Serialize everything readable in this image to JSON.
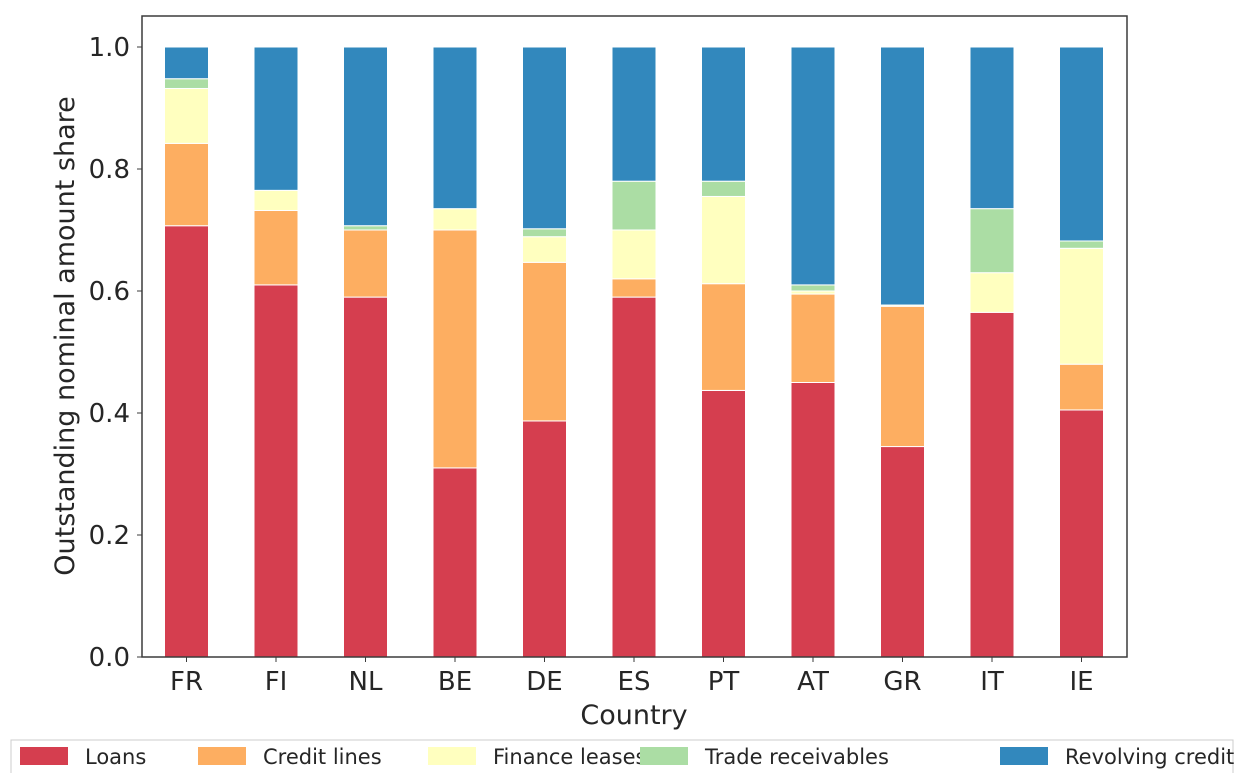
{
  "chart_data": {
    "type": "bar",
    "stacked": true,
    "xlabel": "Country",
    "ylabel": "Outstanding nominal amount share",
    "ylim": [
      0,
      1.05
    ],
    "yticks": [
      0.0,
      0.2,
      0.4,
      0.6,
      0.8,
      1.0
    ],
    "ytick_labels": [
      "0.0",
      "0.2",
      "0.4",
      "0.6",
      "0.8",
      "1.0"
    ],
    "grid": false,
    "legend_position": "bottom",
    "categories": [
      "FR",
      "FI",
      "NL",
      "BE",
      "DE",
      "ES",
      "PT",
      "AT",
      "GR",
      "IT",
      "IE"
    ],
    "series": [
      {
        "name": "Loans",
        "color": "#d53e4f",
        "values": [
          0.707,
          0.61,
          0.59,
          0.31,
          0.387,
          0.59,
          0.437,
          0.45,
          0.345,
          0.565,
          0.405
        ]
      },
      {
        "name": "Credit lines",
        "color": "#fdae61",
        "values": [
          0.135,
          0.122,
          0.11,
          0.39,
          0.26,
          0.03,
          0.175,
          0.145,
          0.23,
          0.0,
          0.075
        ]
      },
      {
        "name": "Finance leases",
        "color": "#ffffbf",
        "values": [
          0.09,
          0.033,
          0.0,
          0.035,
          0.042,
          0.08,
          0.143,
          0.005,
          0.002,
          0.065,
          0.19
        ]
      },
      {
        "name": "Trade receivables",
        "color": "#abdda4",
        "values": [
          0.016,
          0.0,
          0.007,
          0.0,
          0.013,
          0.08,
          0.025,
          0.01,
          0.0,
          0.105,
          0.012
        ]
      },
      {
        "name": "Revolving credit",
        "color": "#3288bd",
        "values": [
          0.052,
          0.235,
          0.293,
          0.265,
          0.298,
          0.22,
          0.22,
          0.39,
          0.423,
          0.265,
          0.318
        ]
      }
    ]
  }
}
